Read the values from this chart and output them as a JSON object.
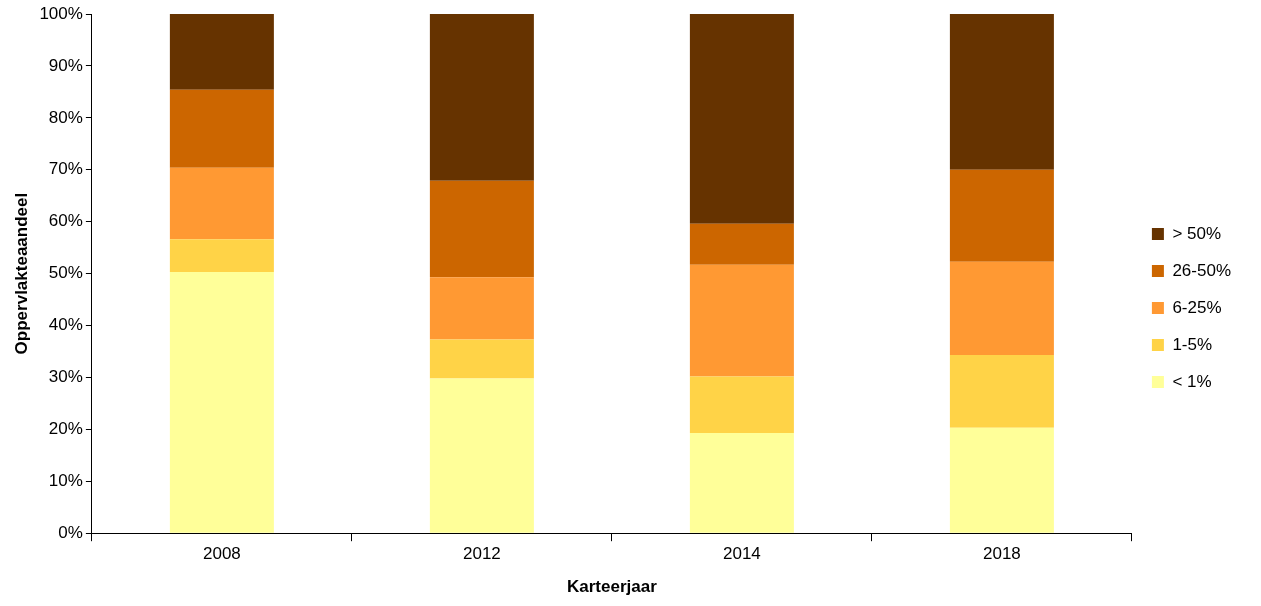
{
  "chart_data": {
    "type": "bar",
    "stacked": true,
    "xlabel": "Karteerjaar",
    "ylabel": "Oppervlakteaandeel",
    "categories": [
      "2008",
      "2012",
      "2014",
      "2018"
    ],
    "series": [
      {
        "name": "< 1%",
        "color": "#ffff99",
        "values": [
          50.3,
          29.8,
          19.3,
          20.3
        ]
      },
      {
        "name": "1-5%",
        "color": "#ffd347",
        "values": [
          6.3,
          7.5,
          10.9,
          14
        ]
      },
      {
        "name": "6-25%",
        "color": "#ff9933",
        "values": [
          13.8,
          12,
          21.5,
          18
        ]
      },
      {
        "name": "26-50%",
        "color": "#cc6600",
        "values": [
          15,
          18.6,
          7.9,
          17.7
        ]
      },
      {
        "name": "> 50%",
        "color": "#663300",
        "values": [
          14.6,
          32.1,
          40.4,
          30
        ]
      }
    ],
    "ylim": [
      0,
      100
    ],
    "yticks": [
      {
        "value": 0,
        "label": "0%"
      },
      {
        "value": 10,
        "label": "10%"
      },
      {
        "value": 20,
        "label": "20%"
      },
      {
        "value": 30,
        "label": "30%"
      },
      {
        "value": 40,
        "label": "40%"
      },
      {
        "value": 50,
        "label": "50%"
      },
      {
        "value": 60,
        "label": "60%"
      },
      {
        "value": 70,
        "label": "70%"
      },
      {
        "value": 80,
        "label": "80%"
      },
      {
        "value": 90,
        "label": "90%"
      },
      {
        "value": 100,
        "label": "100%"
      }
    ],
    "legend": "right"
  }
}
